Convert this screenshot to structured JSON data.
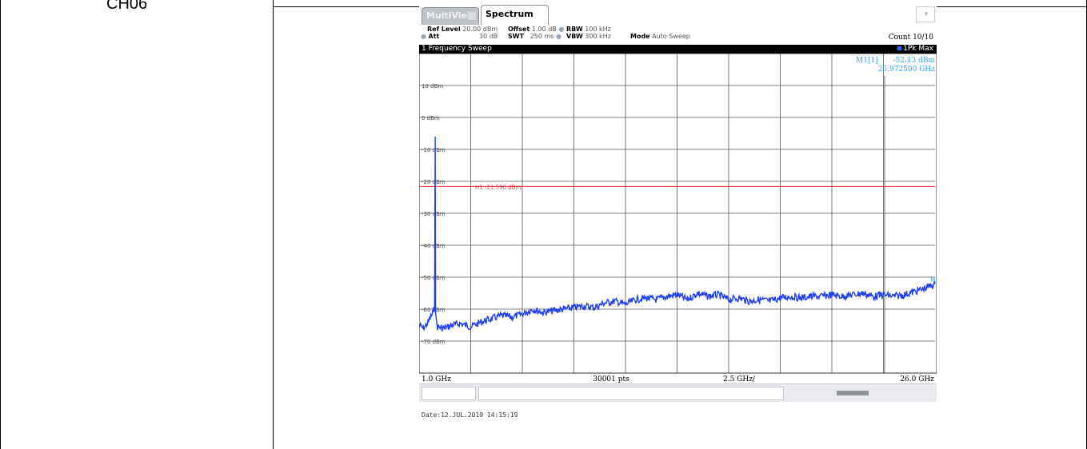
{
  "row_label": "CH06",
  "instrument": {
    "tabs": [
      {
        "label": "MultiView"
      },
      {
        "label": "Spectrum"
      }
    ],
    "settings": {
      "ref_level_label": "Ref Level",
      "ref_level_value": "20.00 dBm",
      "offset_label": "Offset",
      "offset_value": "1.00 dB",
      "rbw_label": "RBW",
      "rbw_value": "100 kHz",
      "att_label": "Att",
      "att_value": "30 dB",
      "swt_label": "SWT",
      "swt_value": "250 ms",
      "vbw_label": "VBW",
      "vbw_value": "300 kHz",
      "mode_label": "Mode",
      "mode_value": "Auto Sweep",
      "count_label": "Count 10/10"
    },
    "sweep_title": "1 Frequency Sweep",
    "trace_label": "1Pk Max",
    "date_stamp": "Date:12.JUL.2019 14:15:19"
  },
  "chart_data": {
    "type": "line",
    "title": "1 Frequency Sweep",
    "x_start_label": "1.0 GHz",
    "x_center_label": "30001 pts",
    "x_step_label": "2.5 GHz/",
    "x_stop_label": "26.0 GHz",
    "xlim_ghz": [
      1.0,
      26.0
    ],
    "ylim_dbm": [
      -80,
      20
    ],
    "y_ticks": [
      {
        "value": 10,
        "label": "10 dBm"
      },
      {
        "value": 0,
        "label": "0 dBm"
      },
      {
        "value": -10,
        "label": "-10 dBm"
      },
      {
        "value": -20,
        "label": "-20 dBm"
      },
      {
        "value": -30,
        "label": "-30 dBm"
      },
      {
        "value": -40,
        "label": "-40 dBm"
      },
      {
        "value": -50,
        "label": "-50 dBm"
      },
      {
        "value": -60,
        "label": "-60 dBm"
      },
      {
        "value": -70,
        "label": "-70 dBm"
      }
    ],
    "grid": true,
    "threshold_line": {
      "label": "H1 -21.590 dBm",
      "value_dbm": -21.59,
      "color": "#e8322e"
    },
    "marker": {
      "name": "M1[1]",
      "level_label": "-52.13 dBm",
      "freq_label": "25.972500 GHz",
      "freq_ghz": 25.9725,
      "level_dbm": -52.13,
      "short_label": "M1",
      "color": "#2aa4e6"
    },
    "series": [
      {
        "color": "#1f3ff0",
        "x_ghz": [
          1.0,
          1.2,
          1.4,
          1.6,
          1.75,
          1.78,
          1.8,
          1.83,
          1.9,
          2.2,
          2.6,
          3.0,
          3.5,
          4.0,
          4.5,
          5.0,
          5.5,
          6.0,
          6.5,
          7.0,
          7.5,
          8.0,
          8.5,
          9.0,
          9.5,
          10.0,
          10.5,
          11.0,
          11.5,
          12.0,
          12.5,
          13.0,
          13.5,
          14.0,
          14.5,
          15.0,
          15.5,
          16.0,
          16.5,
          17.0,
          17.5,
          18.0,
          18.5,
          19.0,
          19.5,
          20.0,
          20.5,
          21.0,
          21.5,
          22.0,
          22.5,
          23.0,
          23.5,
          24.0,
          24.5,
          25.0,
          25.5,
          26.0
        ],
        "y_dbm": [
          -65.0,
          -66.0,
          -64.5,
          -62.0,
          -59.5,
          -6.0,
          -60.0,
          -64.0,
          -65.5,
          -66.0,
          -65.0,
          -64.5,
          -65.5,
          -64.0,
          -63.0,
          -62.0,
          -62.5,
          -61.5,
          -60.0,
          -61.0,
          -60.5,
          -60.0,
          -59.5,
          -59.0,
          -59.5,
          -58.0,
          -57.5,
          -58.5,
          -57.0,
          -56.5,
          -57.0,
          -56.0,
          -55.5,
          -57.0,
          -55.0,
          -56.0,
          -55.5,
          -57.0,
          -56.5,
          -57.5,
          -57.0,
          -57.5,
          -56.5,
          -56.0,
          -56.5,
          -56.0,
          -56.0,
          -55.5,
          -56.0,
          -55.5,
          -55.0,
          -56.0,
          -55.5,
          -56.0,
          -55.5,
          -54.5,
          -53.5,
          -52.13
        ]
      }
    ]
  }
}
